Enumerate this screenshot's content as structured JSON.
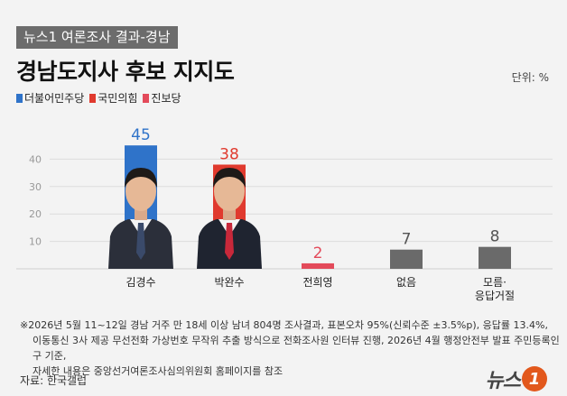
{
  "header": {
    "tag": "뉴스1 여론조사 결과-경남",
    "title": "경남도지사 후보 지지도",
    "unit": "단위: %"
  },
  "legend": [
    {
      "label": "더불어민주당",
      "color": "#2f73c9"
    },
    {
      "label": "국민의힘",
      "color": "#e03a2e"
    },
    {
      "label": "진보당",
      "color": "#e34a5a"
    }
  ],
  "chart_data": {
    "type": "bar",
    "title": "경남도지사 후보 지지도",
    "categories": [
      "김경수",
      "박완수",
      "전희영",
      "없음",
      "모름·\n응답거절"
    ],
    "values": [
      45,
      38,
      2,
      7,
      8
    ],
    "colors": [
      "#2f73c9",
      "#e03a2e",
      "#e34a5a",
      "#6a6a6a",
      "#6a6a6a"
    ],
    "label_colors": [
      "#2f73c9",
      "#e03a2e",
      "#e34a5a",
      "#555555",
      "#555555"
    ],
    "yticks": [
      10,
      20,
      30,
      40
    ],
    "ylim": [
      0,
      50
    ],
    "unit": "%",
    "grid": true,
    "legend_position": "top-left"
  },
  "footnote": {
    "line1": "※2026년 5월 11~12일 경남 거주 만 18세 이상 남녀 804명 조사결과, 표본오차 95%(신뢰수준 ±3.5%p), 응답률 13.4%,",
    "line2": "이동통신 3사 제공 무선전화 가상번호 무작위 추출 방식으로 전화조사원 인터뷰 진행, 2026년 4월 행정안전부 발표 주민등록인구 기준,",
    "line3": "자세한 내용은 중앙선거여론조사심의위원회 홈페이지를 참조"
  },
  "source": "자료: 한국갤럽",
  "logo": {
    "text": "뉴스",
    "badge": "1"
  }
}
